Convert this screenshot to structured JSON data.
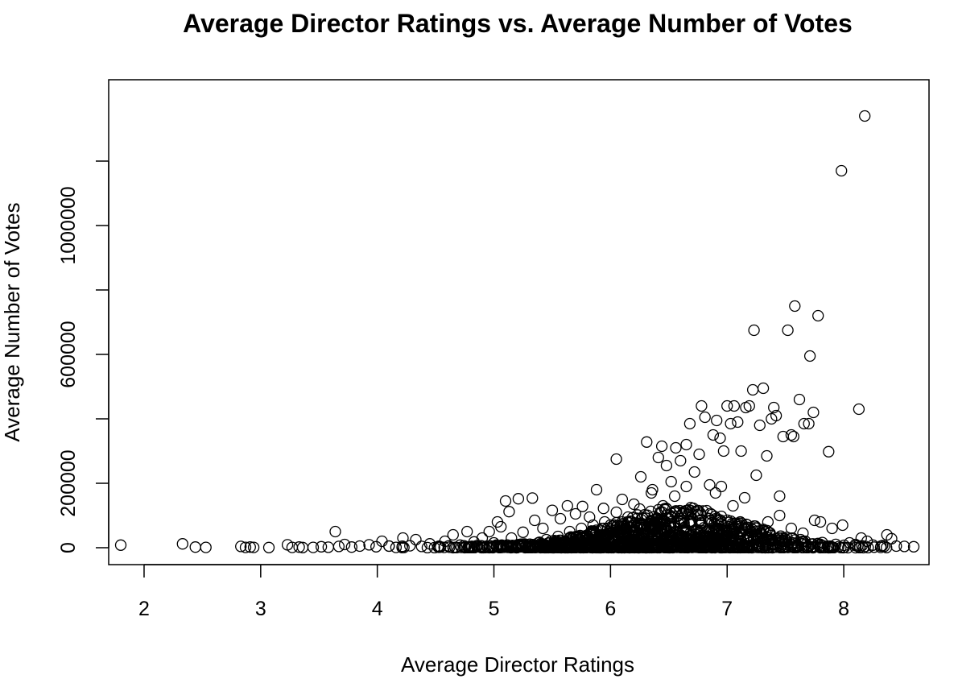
{
  "chart_data": {
    "type": "scatter",
    "title": "Average Director Ratings vs. Average Number of Votes",
    "xlabel": "Average Director Ratings",
    "ylabel": "Average Number of Votes",
    "xlim": [
      1.8,
      8.6
    ],
    "ylim": [
      0,
      1400000
    ],
    "x_ticks": [
      2,
      3,
      4,
      5,
      6,
      7,
      8
    ],
    "x_tick_labels": [
      "2",
      "3",
      "4",
      "5",
      "6",
      "7",
      "8"
    ],
    "y_ticks": [
      0,
      200000,
      400000,
      600000,
      800000,
      1000000,
      1200000
    ],
    "y_tick_labels": [
      "0",
      "200000",
      "",
      "600000",
      "",
      "1000000",
      ""
    ],
    "grid": false,
    "legend": "none",
    "marker": "open-circle",
    "points": [
      [
        1.8,
        8000
      ],
      [
        2.33,
        12000
      ],
      [
        2.44,
        2000
      ],
      [
        2.53,
        1000
      ],
      [
        2.83,
        4000
      ],
      [
        2.87,
        1000
      ],
      [
        2.91,
        2000
      ],
      [
        2.94,
        1000
      ],
      [
        3.07,
        500
      ],
      [
        3.23,
        9000
      ],
      [
        3.27,
        1000
      ],
      [
        3.33,
        2000
      ],
      [
        3.36,
        500
      ],
      [
        3.45,
        1000
      ],
      [
        3.52,
        3000
      ],
      [
        3.58,
        1500
      ],
      [
        3.64,
        50000
      ],
      [
        3.67,
        4000
      ],
      [
        3.72,
        10000
      ],
      [
        3.78,
        2000
      ],
      [
        3.85,
        5000
      ],
      [
        3.93,
        9000
      ],
      [
        3.99,
        3000
      ],
      [
        4.04,
        20000
      ],
      [
        4.1,
        5000
      ],
      [
        4.16,
        1000
      ],
      [
        4.22,
        30000
      ],
      [
        4.28,
        6000
      ],
      [
        4.33,
        25000
      ],
      [
        4.38,
        4000
      ],
      [
        4.45,
        12000
      ],
      [
        4.52,
        3000
      ],
      [
        4.58,
        20000
      ],
      [
        4.65,
        40000
      ],
      [
        4.71,
        8000
      ],
      [
        4.77,
        50000
      ],
      [
        4.83,
        18000
      ],
      [
        4.9,
        30000
      ],
      [
        4.96,
        50000
      ],
      [
        5.03,
        80000
      ],
      [
        5.06,
        65000
      ],
      [
        5.1,
        145000
      ],
      [
        5.13,
        112000
      ],
      [
        5.21,
        152000
      ],
      [
        5.25,
        48000
      ],
      [
        5.33,
        154000
      ],
      [
        5.35,
        85000
      ],
      [
        5.42,
        60000
      ],
      [
        5.5,
        116000
      ],
      [
        5.57,
        90000
      ],
      [
        5.63,
        130000
      ],
      [
        5.7,
        105000
      ],
      [
        5.76,
        128000
      ],
      [
        5.82,
        95000
      ],
      [
        5.88,
        180000
      ],
      [
        5.94,
        122000
      ],
      [
        6.05,
        275000
      ],
      [
        6.1,
        150000
      ],
      [
        6.15,
        95000
      ],
      [
        6.2,
        135000
      ],
      [
        6.26,
        220000
      ],
      [
        6.31,
        328000
      ],
      [
        6.36,
        180000
      ],
      [
        6.41,
        280000
      ],
      [
        6.44,
        315000
      ],
      [
        6.48,
        255000
      ],
      [
        6.52,
        205000
      ],
      [
        6.56,
        310000
      ],
      [
        6.6,
        270000
      ],
      [
        6.65,
        320000
      ],
      [
        6.68,
        385000
      ],
      [
        6.72,
        235000
      ],
      [
        6.76,
        290000
      ],
      [
        6.78,
        440000
      ],
      [
        6.81,
        405000
      ],
      [
        6.85,
        195000
      ],
      [
        6.88,
        350000
      ],
      [
        6.91,
        395000
      ],
      [
        6.94,
        340000
      ],
      [
        6.97,
        300000
      ],
      [
        7.0,
        440000
      ],
      [
        7.03,
        385000
      ],
      [
        7.06,
        440000
      ],
      [
        7.09,
        390000
      ],
      [
        7.12,
        300000
      ],
      [
        7.16,
        435000
      ],
      [
        7.19,
        440000
      ],
      [
        7.22,
        490000
      ],
      [
        7.23,
        675000
      ],
      [
        7.25,
        225000
      ],
      [
        7.28,
        380000
      ],
      [
        7.31,
        495000
      ],
      [
        7.34,
        285000
      ],
      [
        7.38,
        400000
      ],
      [
        7.4,
        435000
      ],
      [
        7.42,
        410000
      ],
      [
        7.45,
        160000
      ],
      [
        7.48,
        345000
      ],
      [
        7.52,
        675000
      ],
      [
        7.55,
        350000
      ],
      [
        7.57,
        345000
      ],
      [
        7.58,
        750000
      ],
      [
        7.62,
        460000
      ],
      [
        7.66,
        385000
      ],
      [
        7.7,
        385000
      ],
      [
        7.71,
        595000
      ],
      [
        7.74,
        420000
      ],
      [
        7.78,
        720000
      ],
      [
        7.87,
        298000
      ],
      [
        7.98,
        1170000
      ],
      [
        8.13,
        430000
      ],
      [
        8.18,
        1340000
      ],
      [
        7.8,
        80000
      ],
      [
        7.9,
        60000
      ],
      [
        7.99,
        70000
      ],
      [
        8.05,
        15000
      ],
      [
        8.1,
        10000
      ],
      [
        8.15,
        30000
      ],
      [
        8.2,
        20000
      ],
      [
        8.25,
        8000
      ],
      [
        8.32,
        5000
      ],
      [
        8.37,
        40000
      ],
      [
        8.41,
        28000
      ],
      [
        8.45,
        5000
      ],
      [
        8.52,
        4000
      ],
      [
        8.6,
        3000
      ],
      [
        7.25,
        40000
      ],
      [
        7.35,
        80000
      ],
      [
        7.45,
        100000
      ],
      [
        7.55,
        60000
      ],
      [
        7.65,
        45000
      ],
      [
        7.75,
        85000
      ],
      [
        6.9,
        170000
      ],
      [
        6.95,
        190000
      ],
      [
        7.05,
        130000
      ],
      [
        7.15,
        155000
      ],
      [
        6.55,
        160000
      ],
      [
        6.65,
        190000
      ],
      [
        6.45,
        130000
      ],
      [
        6.35,
        170000
      ],
      [
        6.25,
        120000
      ],
      [
        6.05,
        110000
      ],
      [
        5.95,
        80000
      ],
      [
        5.85,
        70000
      ],
      [
        5.75,
        60000
      ],
      [
        5.65,
        50000
      ],
      [
        5.55,
        35000
      ],
      [
        5.45,
        25000
      ],
      [
        5.15,
        30000
      ],
      [
        5.0,
        15000
      ],
      [
        4.85,
        6000
      ],
      [
        4.75,
        2000
      ]
    ],
    "dense_cluster": {
      "x_range": [
        3.4,
        8.5
      ],
      "peak_x": 6.6,
      "peak_y": 120000,
      "spread_x": 0.75,
      "count": 1400
    }
  }
}
